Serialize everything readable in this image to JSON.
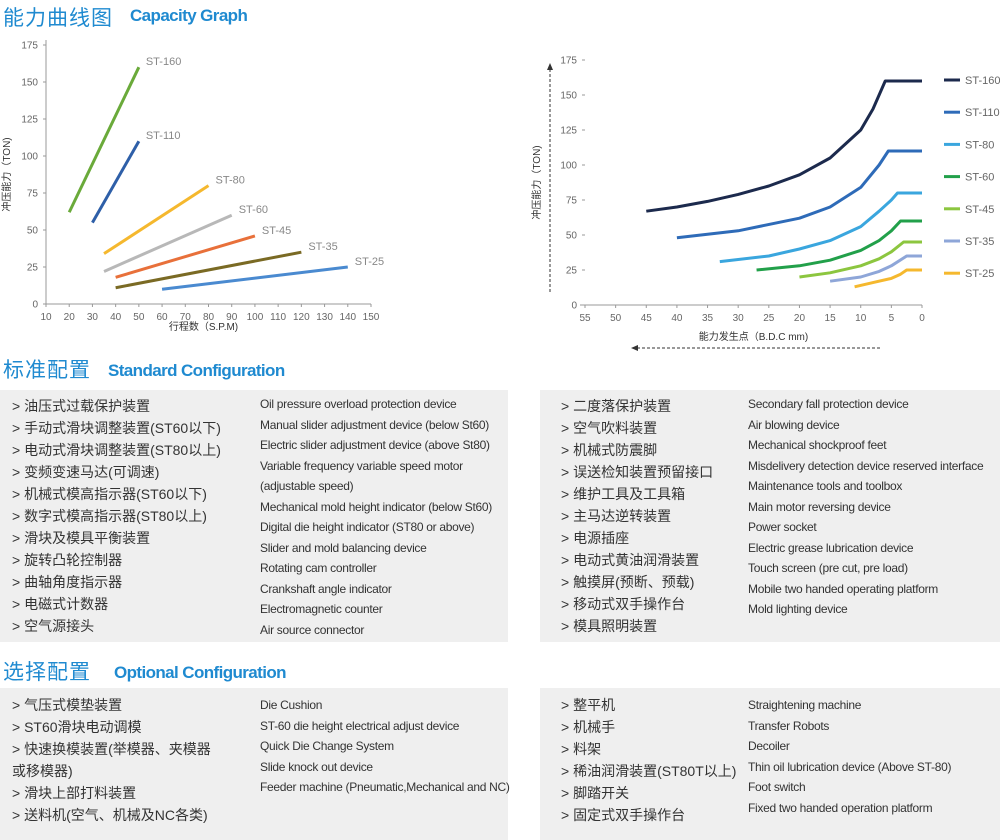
{
  "header": {
    "title_cn": "能力曲线图",
    "title_en": "Capacity Graph"
  },
  "chart_data": [
    {
      "type": "line",
      "xlabel": "行程数（S.P.M)",
      "ylabel": "冲压能力（TON)",
      "xlim": [
        10,
        150
      ],
      "xticks": [
        10,
        20,
        30,
        40,
        50,
        60,
        70,
        80,
        90,
        100,
        110,
        120,
        130,
        140,
        150
      ],
      "ylim": [
        0,
        175
      ],
      "yticks": [
        0,
        25,
        50,
        75,
        100,
        125,
        150,
        175
      ],
      "series": [
        {
          "name": "ST-160",
          "color": "#6aaa3a",
          "x": [
            20,
            50
          ],
          "values": [
            62,
            160
          ]
        },
        {
          "name": "ST-110",
          "color": "#2e5fa8",
          "x": [
            30,
            50
          ],
          "values": [
            55,
            110
          ]
        },
        {
          "name": "ST-80",
          "color": "#f5b82e",
          "x": [
            35,
            80
          ],
          "values": [
            34,
            80
          ]
        },
        {
          "name": "ST-60",
          "color": "#b8b8b8",
          "x": [
            35,
            90
          ],
          "values": [
            22,
            60
          ]
        },
        {
          "name": "ST-45",
          "color": "#e8703a",
          "x": [
            40,
            100
          ],
          "values": [
            18,
            46
          ]
        },
        {
          "name": "ST-35",
          "color": "#7a6a24",
          "x": [
            40,
            120
          ],
          "values": [
            11,
            35
          ]
        },
        {
          "name": "ST-25",
          "color": "#4a8ad0",
          "x": [
            60,
            140
          ],
          "values": [
            10,
            25
          ]
        }
      ]
    },
    {
      "type": "line",
      "xlabel": "能力发生点（B.D.C mm)",
      "ylabel": "冲压能力（TON)",
      "xlim": [
        55,
        0
      ],
      "xticks": [
        55,
        50,
        45,
        40,
        35,
        30,
        25,
        20,
        15,
        10,
        5,
        0
      ],
      "ylim": [
        0,
        175
      ],
      "yticks": [
        0,
        25,
        50,
        75,
        100,
        125,
        150,
        175
      ],
      "legend": "right",
      "series": [
        {
          "name": "ST-160",
          "color": "#1c2a4d",
          "x": [
            45,
            40,
            35,
            30,
            25,
            20,
            15,
            10,
            8,
            6,
            5,
            0
          ],
          "values": [
            67,
            70,
            74,
            79,
            85,
            93,
            105,
            125,
            140,
            160,
            160,
            160
          ]
        },
        {
          "name": "ST-110",
          "color": "#2e6bb8",
          "x": [
            40,
            30,
            20,
            15,
            10,
            7,
            5.5,
            0
          ],
          "values": [
            48,
            53,
            62,
            70,
            84,
            100,
            110,
            110
          ]
        },
        {
          "name": "ST-80",
          "color": "#3aa6de",
          "x": [
            33,
            25,
            20,
            15,
            10,
            7,
            5,
            4,
            0
          ],
          "values": [
            31,
            35,
            40,
            46,
            56,
            67,
            75,
            80,
            80
          ]
        },
        {
          "name": "ST-60",
          "color": "#22a04a",
          "x": [
            27,
            20,
            15,
            10,
            7,
            5,
            3.5,
            0
          ],
          "values": [
            25,
            28,
            32,
            39,
            46,
            53,
            60,
            60
          ]
        },
        {
          "name": "ST-45",
          "color": "#8cc63f",
          "x": [
            20,
            15,
            10,
            7,
            5,
            3,
            0
          ],
          "values": [
            20,
            23,
            28,
            33,
            38,
            45,
            45
          ]
        },
        {
          "name": "ST-35",
          "color": "#8ea6d8",
          "x": [
            15,
            10,
            7,
            5,
            2.5,
            0
          ],
          "values": [
            17,
            20,
            24,
            28,
            35,
            35
          ]
        },
        {
          "name": "ST-25",
          "color": "#f5b82e",
          "x": [
            11,
            8,
            5,
            3.5,
            2.5,
            0
          ],
          "values": [
            13,
            16,
            19,
            22,
            25,
            25
          ]
        }
      ]
    }
  ],
  "standard_configuration": {
    "title_cn": "标准配置",
    "title_en": "Standard Configuration",
    "left": {
      "cn": [
        "> 油压式过载保护装置",
        "> 手动式滑块调整装置(ST60以下)",
        "> 电动式滑块调整装置(ST80以上)",
        "> 变频变速马达(可调速)",
        "> 机械式模高指示器(ST60以下)",
        "> 数字式模高指示器(ST80以上)",
        "> 滑块及模具平衡装置",
        "> 旋转凸轮控制器",
        "> 曲轴角度指示器",
        "> 电磁式计数器",
        "> 空气源接头"
      ],
      "en": [
        "Oil pressure overload protection device",
        "Manual slider adjustment device (below St60)",
        "Electric slider adjustment device (above St80)",
        "Variable frequency variable speed motor (adjustable speed)",
        "Mechanical mold height indicator (below St60)",
        "Digital die height indicator (ST80 or above)",
        "Slider and mold balancing device",
        "Rotating cam controller",
        "Crankshaft angle indicator",
        "Electromagnetic counter",
        "Air source connector"
      ]
    },
    "right": {
      "cn": [
        "> 二度落保护装置",
        "> 空气吹料装置",
        "> 机械式防震脚",
        "> 误送检知装置预留接口",
        "> 维护工具及工具箱",
        "> 主马达逆转装置",
        "> 电源插座",
        "> 电动式黄油润滑装置",
        "> 触摸屏(预断、预载)",
        "> 移动式双手操作台",
        "> 模具照明装置"
      ],
      "en": [
        "Secondary fall protection device",
        "Air blowing device",
        "Mechanical shockproof feet",
        "Misdelivery detection device reserved interface",
        "Maintenance tools and toolbox",
        "Main motor reversing device",
        "Power socket",
        "Electric grease lubrication device",
        "Touch screen (pre cut, pre load)",
        "Mobile two handed operating platform",
        "Mold lighting device"
      ]
    }
  },
  "optional_configuration": {
    "title_cn": "选择配置",
    "title_en": "Optional Configuration",
    "left": {
      "cn": [
        "> 气压式模垫装置",
        "> ST60滑块电动调模",
        "> 快速换模装置(举模器、夹模器或移模器)",
        "> 滑块上部打料装置",
        "> 送料机(空气、机械及NC各类)"
      ],
      "en": [
        "Die Cushion",
        "ST-60 die height electrical adjust device",
        "Quick Die Change System",
        "Slide knock out device",
        "Feeder machine (Pneumatic,Mechanical and NC)"
      ]
    },
    "right": {
      "cn": [
        "> 整平机",
        "> 机械手",
        "> 料架",
        "> 稀油润滑装置(ST80T以上)",
        "> 脚踏开关",
        "> 固定式双手操作台"
      ],
      "en": [
        "Straightening machine",
        "Transfer Robots",
        "Decoiler",
        "Thin oil lubrication device (Above ST-80)",
        "Foot switch",
        "Fixed two handed operation platform"
      ]
    }
  }
}
